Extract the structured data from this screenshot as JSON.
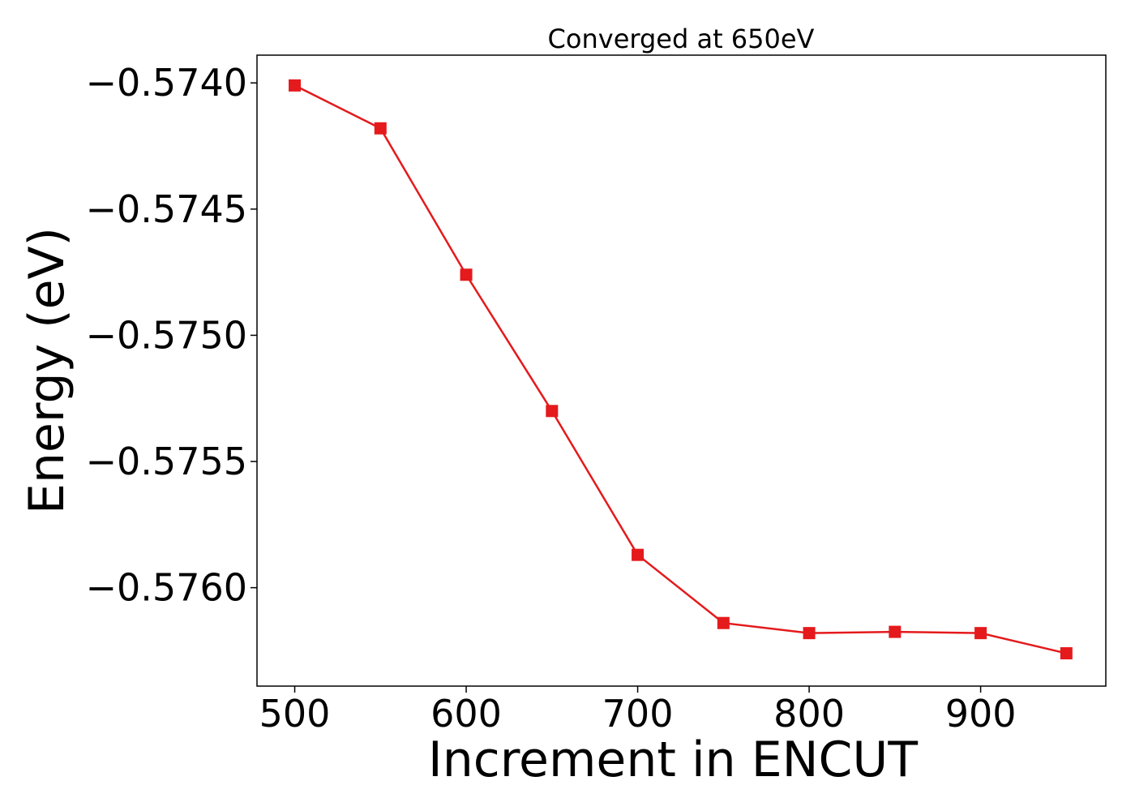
{
  "chart_data": {
    "type": "line",
    "title": "Converged at 650eV",
    "xlabel": "Increment in ENCUT",
    "ylabel": "Energy (eV)",
    "x": [
      500,
      550,
      600,
      650,
      700,
      750,
      800,
      850,
      900,
      950
    ],
    "series": [
      {
        "values": [
          -0.57401,
          -0.57418,
          -0.57476,
          -0.5753,
          -0.57587,
          -0.57614,
          -0.57618,
          -0.576175,
          -0.57618,
          -0.57626
        ],
        "color": "#e41a1c",
        "marker": "square"
      }
    ],
    "xlim": [
      478,
      973
    ],
    "ylim": [
      -0.57639,
      -0.57389
    ],
    "xticks": [
      500,
      600,
      700,
      800,
      900
    ],
    "xtick_labels": [
      "500",
      "600",
      "700",
      "800",
      "900"
    ],
    "yticks": [
      -0.574,
      -0.5745,
      -0.575,
      -0.5755,
      -0.576
    ],
    "ytick_labels": [
      "−0.5740",
      "−0.5745",
      "−0.5750",
      "−0.5755",
      "−0.5760"
    ],
    "grid": false,
    "legend": false
  }
}
